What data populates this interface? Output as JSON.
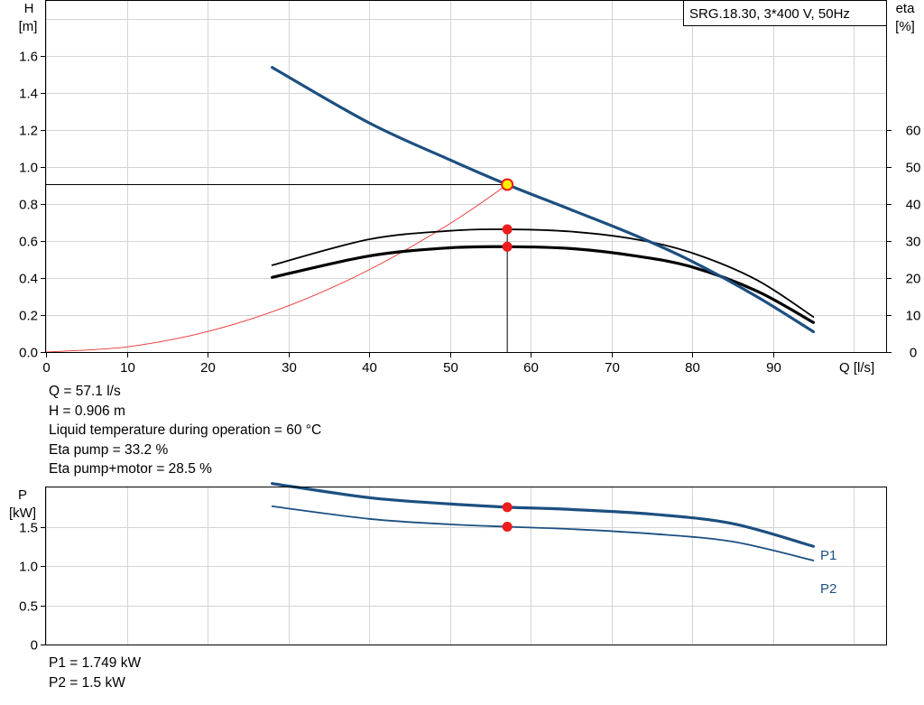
{
  "colors": {
    "head_curve": "#1c4f80",
    "power_curve": "#1c4f80",
    "eta_curve": "#000000",
    "system_curve": "#ee3030",
    "duty_point": "#ee1c1c",
    "duty_point_marker": "#ffee00",
    "grid": "#d4d4d4"
  },
  "readouts_top": [
    {
      "label": "Q",
      "value": "57.1 l/s",
      "text": "Q = 57.1 l/s"
    },
    {
      "label": "H",
      "value": "0.906 m",
      "text": "H = 0.906 m"
    },
    {
      "label": "Liquid temperature during operation",
      "value": "60 °C",
      "text": "Liquid temperature during operation = 60 °C"
    },
    {
      "label": "Eta pump",
      "value": "33.2 %",
      "text": "Eta pump = 33.2 %"
    },
    {
      "label": "Eta pump+motor",
      "value": "28.5 %",
      "text": "Eta pump+motor = 28.5 %"
    }
  ],
  "readouts_bottom": [
    {
      "label": "P1",
      "value": "1.749 kW",
      "text": "P1 = 1.749 kW"
    },
    {
      "label": "P2",
      "value": "1.5 kW",
      "text": "P2 = 1.5 kW"
    }
  ],
  "chart_data": [
    {
      "type": "line",
      "title": "SRG.18.30, 3*400 V, 50Hz",
      "xlabel": "Q [l/s]",
      "ylabel_line1": "H",
      "ylabel_line2": "[m]",
      "y2label_line1": "eta",
      "y2label_line2": "[%]",
      "xlim": [
        0,
        104
      ],
      "ylim": [
        0,
        1.9
      ],
      "y2lim": [
        0,
        95
      ],
      "x_ticks": [
        0,
        10,
        20,
        30,
        40,
        50,
        60,
        70,
        80,
        90
      ],
      "x_tick_labels": [
        "0",
        "10",
        "20",
        "30",
        "40",
        "50",
        "60",
        "70",
        "80",
        "90"
      ],
      "y_ticks": [
        0,
        0.2,
        0.4,
        0.6,
        0.8,
        1.0,
        1.2,
        1.4,
        1.6
      ],
      "y_tick_labels": [
        "0.0",
        "0.2",
        "0.4",
        "0.6",
        "0.8",
        "1.0",
        "1.2",
        "1.4",
        "1.6"
      ],
      "y2_ticks": [
        0,
        10,
        20,
        30,
        40,
        50,
        60
      ],
      "y2_tick_labels": [
        "0",
        "10",
        "20",
        "30",
        "40",
        "50",
        "60"
      ],
      "grid": true,
      "series": [
        {
          "role": "head",
          "axis": "left",
          "x": [
            28,
            40,
            50,
            57.1,
            65,
            73,
            80,
            88,
            95
          ],
          "values": [
            1.54,
            1.24,
            1.04,
            0.906,
            0.77,
            0.63,
            0.49,
            0.3,
            0.11
          ]
        },
        {
          "role": "eta-pump",
          "axis": "right",
          "x": [
            28,
            40,
            50,
            57.1,
            65,
            73,
            80,
            88,
            95
          ],
          "values": [
            23.5,
            30.5,
            32.8,
            33.2,
            32.6,
            30.5,
            26.8,
            19.5,
            9.5
          ]
        },
        {
          "role": "eta-pump-motor",
          "axis": "right",
          "x": [
            28,
            40,
            50,
            57.1,
            65,
            73,
            80,
            88,
            95
          ],
          "values": [
            20.2,
            26.0,
            28.2,
            28.5,
            28.0,
            26.0,
            23.0,
            16.5,
            8.0
          ]
        },
        {
          "role": "system-curve",
          "axis": "left",
          "x": [
            0,
            10,
            20,
            30,
            40,
            50,
            57.1
          ],
          "values": [
            0,
            0.028,
            0.111,
            0.25,
            0.445,
            0.695,
            0.906
          ]
        }
      ],
      "duty_point": {
        "x": 57.1,
        "head": 0.906,
        "eta_pump": 33.2,
        "eta_pump_motor": 28.5
      }
    },
    {
      "type": "line",
      "ylabel_line1": "P",
      "ylabel_line2": "[kW]",
      "xlim": [
        0,
        104
      ],
      "ylim": [
        0,
        2.0
      ],
      "y_ticks": [
        0,
        0.5,
        1.0,
        1.5
      ],
      "y_tick_labels": [
        "0",
        "0.5",
        "1.0",
        "1.5"
      ],
      "grid": true,
      "series": [
        {
          "name": "P1",
          "x": [
            28,
            40,
            50,
            57.1,
            65,
            75,
            85,
            95
          ],
          "values": [
            2.05,
            1.87,
            1.79,
            1.749,
            1.72,
            1.66,
            1.54,
            1.25
          ]
        },
        {
          "name": "P2",
          "x": [
            28,
            40,
            50,
            57.1,
            65,
            75,
            85,
            95
          ],
          "values": [
            1.76,
            1.6,
            1.53,
            1.5,
            1.47,
            1.41,
            1.31,
            1.07
          ]
        }
      ],
      "duty_point": {
        "x": 57.1,
        "p1": 1.749,
        "p2": 1.5
      }
    }
  ]
}
